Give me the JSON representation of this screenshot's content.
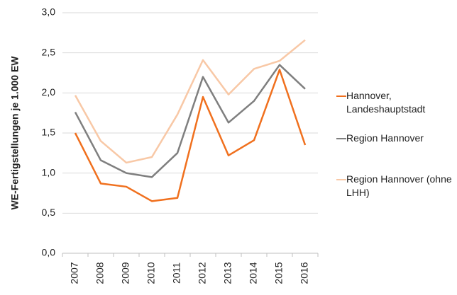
{
  "chart_data": {
    "type": "line",
    "y_label": "WE-Fertigstellungen je 1.000 EW",
    "categories": [
      "2007",
      "2008",
      "2009",
      "2010",
      "2011",
      "2012",
      "2013",
      "2014",
      "2015",
      "2016"
    ],
    "series": [
      {
        "name": "Hannover, Landeshauptstadt",
        "color": "#f0701e",
        "values": [
          1.5,
          0.87,
          0.83,
          0.65,
          0.69,
          1.95,
          1.22,
          1.41,
          2.29,
          1.35
        ]
      },
      {
        "name": "Region Hannover",
        "color": "#7f7f7f",
        "values": [
          1.76,
          1.16,
          1.0,
          0.95,
          1.25,
          2.2,
          1.63,
          1.9,
          2.35,
          2.05
        ]
      },
      {
        "name": "Region Hannover (ohne LHH)",
        "color": "#f8c8a6",
        "values": [
          1.97,
          1.4,
          1.13,
          1.2,
          1.73,
          2.41,
          1.98,
          2.3,
          2.4,
          2.66
        ]
      }
    ],
    "ylim": [
      0,
      3
    ],
    "yticks": [
      {
        "value": 0,
        "label": "0,0"
      },
      {
        "value": 0.5,
        "label": "0,5"
      },
      {
        "value": 1,
        "label": "1,0"
      },
      {
        "value": 1.5,
        "label": "1,5"
      },
      {
        "value": 2,
        "label": "2,0"
      },
      {
        "value": 2.5,
        "label": "2,5"
      },
      {
        "value": 3,
        "label": "3,0"
      }
    ],
    "grid": true,
    "legend": "right"
  }
}
